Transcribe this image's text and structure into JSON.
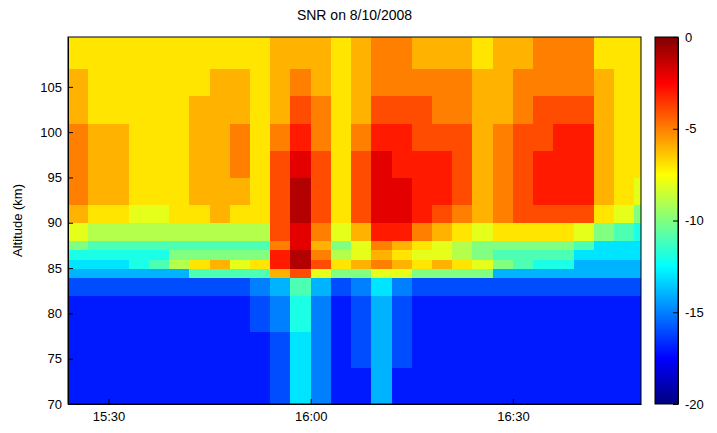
{
  "chart_data": {
    "type": "heatmap",
    "title": "SNR on 8/10/2008",
    "y_label": "Altitude (km)",
    "color": "jet",
    "xlim": [
      924,
      1009
    ],
    "ylim": [
      70,
      110.5
    ],
    "xticks": [
      {
        "value": 930,
        "label": "15:30"
      },
      {
        "value": 960,
        "label": "16:00"
      },
      {
        "value": 990,
        "label": "16:30"
      }
    ],
    "yticks": [
      70,
      75,
      80,
      85,
      90,
      95,
      100,
      105
    ],
    "clim": [
      -20,
      0
    ],
    "cticks": [
      -20,
      -15,
      -10,
      -5,
      0
    ],
    "x_edges": [
      924,
      927,
      930,
      933,
      936,
      939,
      942,
      945,
      948,
      951,
      954,
      957,
      960,
      963,
      966,
      969,
      972,
      975,
      978,
      981,
      984,
      987,
      990,
      993,
      996,
      999,
      1002,
      1005,
      1008,
      1011
    ],
    "y_edges": [
      70,
      74,
      78,
      82,
      84,
      85,
      86,
      87,
      88,
      90,
      92,
      95,
      98,
      101,
      104,
      107,
      110.5
    ],
    "cells": [
      [
        -17,
        -17,
        -17,
        -17,
        -17,
        -17,
        -17,
        -17,
        -17,
        -17,
        -16,
        -13,
        -15,
        -17,
        -17,
        -14,
        -17,
        -17,
        -17,
        -17,
        -17,
        -17,
        -17,
        -17,
        -17,
        -17,
        -17,
        -17,
        -17
      ],
      [
        -17,
        -17,
        -17,
        -17,
        -17,
        -17,
        -17,
        -17,
        -17,
        -17,
        -16,
        -13,
        -15,
        -17,
        -16,
        -14,
        -16,
        -17,
        -17,
        -17,
        -17,
        -17,
        -17,
        -17,
        -17,
        -17,
        -17,
        -17,
        -17
      ],
      [
        -17,
        -17,
        -17,
        -17,
        -17,
        -17,
        -17,
        -17,
        -17,
        -16,
        -15,
        -12,
        -15,
        -17,
        -16,
        -14,
        -16,
        -17,
        -17,
        -17,
        -17,
        -17,
        -17,
        -17,
        -17,
        -17,
        -17,
        -17,
        -17
      ],
      [
        -16,
        -16,
        -16,
        -16,
        -16,
        -16,
        -16,
        -16,
        -16,
        -15,
        -14,
        -11,
        -14,
        -16,
        -15,
        -13,
        -15,
        -16,
        -16,
        -16,
        -16,
        -16,
        -16,
        -16,
        -16,
        -16,
        -16,
        -16,
        -16
      ],
      [
        -14,
        -14,
        -14,
        -14,
        -14,
        -14,
        -11,
        -11,
        -11,
        -11,
        -6,
        -4,
        -8,
        -10,
        -10,
        -8,
        -8,
        -10,
        -10,
        -10,
        -10,
        -14,
        -14,
        -14,
        -14,
        -14,
        -14,
        -14,
        -14
      ],
      [
        -13,
        -13,
        -13,
        -12,
        -11,
        -9,
        -7,
        -6,
        -8,
        -7,
        -3,
        -1,
        -4,
        -7,
        -6,
        -5,
        -6,
        -7,
        -6,
        -7,
        -8,
        -10,
        -11,
        -12,
        -12,
        -14,
        -14,
        -14,
        -14
      ],
      [
        -12,
        -12,
        -12,
        -12,
        -12,
        -10,
        -10,
        -10,
        -10,
        -10,
        -3,
        -1,
        -5,
        -9,
        -8,
        -6,
        -7,
        -8,
        -8,
        -9,
        -10,
        -11,
        -11,
        -11,
        -11,
        -13,
        -13,
        -13,
        -13
      ],
      [
        -10,
        -11,
        -11,
        -11,
        -11,
        -11,
        -11,
        -11,
        -11,
        -11,
        -5,
        -2,
        -6,
        -10,
        -8,
        -5,
        -6,
        -7,
        -8,
        -9,
        -10,
        -10,
        -10,
        -10,
        -10,
        -11,
        -13,
        -13,
        -13
      ],
      [
        -8,
        -9,
        -9,
        -9,
        -9,
        -9,
        -9,
        -9,
        -9,
        -9,
        -4,
        -2,
        -5,
        -8,
        -6,
        -3,
        -3,
        -5,
        -6,
        -7,
        -8,
        -7,
        -7,
        -7,
        -7,
        -8,
        -10,
        -11,
        -12
      ],
      [
        -6,
        -7,
        -7,
        -8,
        -8,
        -7,
        -7,
        -6,
        -7,
        -7,
        -4,
        -1,
        -4,
        -7,
        -4,
        -2,
        -2,
        -3,
        -4,
        -5,
        -6,
        -5,
        -4,
        -4,
        -4,
        -4,
        -7,
        -8,
        -10
      ],
      [
        -5,
        -6,
        -6,
        -7,
        -7,
        -7,
        -6,
        -6,
        -6,
        -7,
        -4,
        -1,
        -4,
        -7,
        -4,
        -2,
        -2,
        -3,
        -3,
        -4,
        -6,
        -5,
        -4,
        -3,
        -3,
        -3,
        -6,
        -7,
        -8
      ],
      [
        -5,
        -6,
        -6,
        -7,
        -7,
        -7,
        -6,
        -6,
        -5,
        -7,
        -4,
        -2,
        -4,
        -7,
        -4,
        -2,
        -3,
        -3,
        -3,
        -4,
        -6,
        -5,
        -4,
        -3,
        -3,
        -3,
        -6,
        -7,
        -7
      ],
      [
        -5,
        -6,
        -6,
        -7,
        -7,
        -7,
        -6,
        -6,
        -5,
        -7,
        -5,
        -3,
        -5,
        -7,
        -5,
        -3,
        -3,
        -4,
        -4,
        -4,
        -6,
        -5,
        -4,
        -4,
        -3,
        -3,
        -6,
        -7,
        -7
      ],
      [
        -6,
        -7,
        -7,
        -7,
        -7,
        -7,
        -6,
        -6,
        -6,
        -7,
        -6,
        -4,
        -5,
        -7,
        -6,
        -4,
        -4,
        -4,
        -5,
        -5,
        -6,
        -6,
        -5,
        -4,
        -4,
        -4,
        -6,
        -7,
        -7
      ],
      [
        -6,
        -7,
        -7,
        -7,
        -7,
        -7,
        -7,
        -6,
        -6,
        -7,
        -6,
        -5,
        -6,
        -7,
        -6,
        -5,
        -5,
        -5,
        -5,
        -5,
        -6,
        -6,
        -5,
        -5,
        -5,
        -5,
        -6,
        -7,
        -7
      ],
      [
        -7,
        -7,
        -7,
        -7,
        -7,
        -7,
        -7,
        -7,
        -7,
        -7,
        -6,
        -6,
        -6,
        -7,
        -6,
        -5,
        -5,
        -6,
        -6,
        -6,
        -7,
        -6,
        -6,
        -5,
        -5,
        -5,
        -7,
        -7,
        -7
      ]
    ]
  }
}
